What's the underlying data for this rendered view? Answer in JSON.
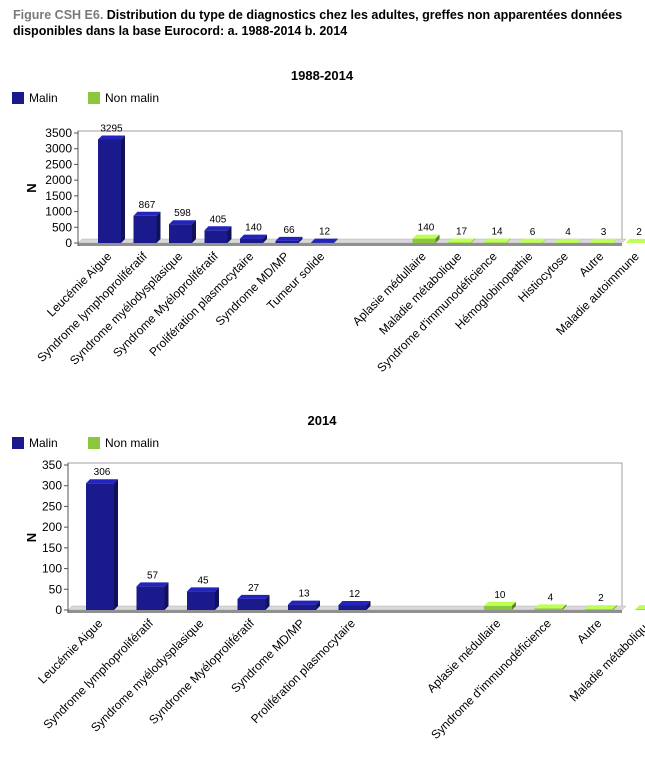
{
  "caption": {
    "figure_label": "Figure CSH E6.",
    "text": " Distribution du type de diagnostics chez les adultes, greffes non apparentées données disponibles dans la base Eurocord:  a. 1988-2014    b. 2014"
  },
  "colors": {
    "malin": "#1a1a8c",
    "non_malin": "#8cc63f"
  },
  "chart_data": [
    {
      "type": "bar",
      "title": "1988-2014",
      "ylabel": "N",
      "xlabel": "",
      "ylim": [
        0,
        3500
      ],
      "yticks": [
        0,
        500,
        1000,
        1500,
        2000,
        2500,
        3000,
        3500
      ],
      "legend": {
        "placement": "top-left",
        "entries": [
          "Malin",
          "Non malin"
        ]
      },
      "series": [
        {
          "name": "Malin",
          "categories": [
            "Leucémie Aigue",
            "Syndrome lymphoprolifératif",
            "Syndrome myélodysplasique",
            "Syndrome Myéloprolifératif",
            "Prolifération plasmocytaire",
            "Syndrome MD/MP",
            "Tumeur solide"
          ],
          "values": [
            3295,
            867,
            598,
            405,
            140,
            66,
            12
          ]
        },
        {
          "name": "Non malin",
          "categories": [
            "Aplasie médullaire",
            "Maladie métabolique",
            "Syndrome d'immunodéficience",
            "Hémoglobinopathie",
            "Histiocytose",
            "Autre",
            "Maladie autoimmune"
          ],
          "values": [
            140,
            17,
            14,
            6,
            4,
            3,
            2
          ]
        }
      ]
    },
    {
      "type": "bar",
      "title": "2014",
      "ylabel": "N",
      "xlabel": "",
      "ylim": [
        0,
        350
      ],
      "yticks": [
        0,
        50,
        100,
        150,
        200,
        250,
        300,
        350
      ],
      "legend": {
        "placement": "top-left",
        "entries": [
          "Malin",
          "Non malin"
        ]
      },
      "series": [
        {
          "name": "Malin",
          "categories": [
            "Leucémie Aigue",
            "Syndrome lymphoprolifératif",
            "Syndrome myélodysplasique",
            "Syndrome Myéloprolifératif",
            "Syndrome MD/MP",
            "Prolifération plasmocytaire"
          ],
          "values": [
            306,
            57,
            45,
            27,
            13,
            12
          ]
        },
        {
          "name": "Non malin",
          "categories": [
            "Aplasie médullaire",
            "Syndrome d'immunodéficience",
            "Autre",
            "Maladie métabolique"
          ],
          "values": [
            10,
            4,
            2,
            2
          ]
        }
      ]
    }
  ]
}
